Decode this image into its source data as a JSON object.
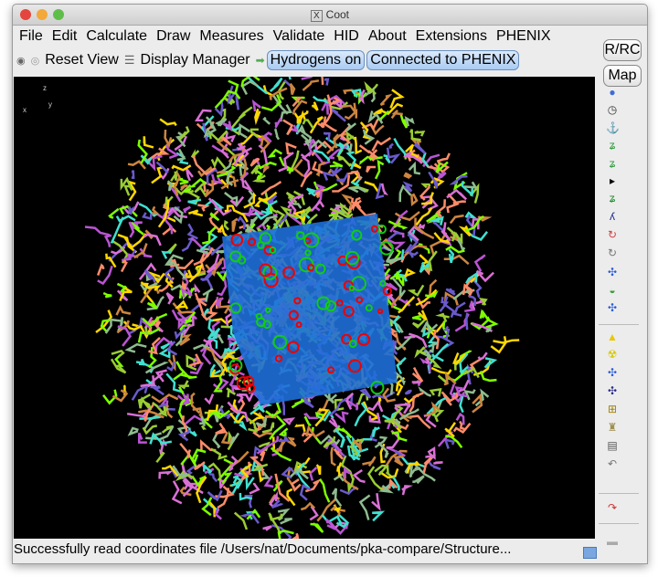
{
  "window": {
    "title": "Coot",
    "title_icon": "x11-icon"
  },
  "menu": [
    "File",
    "Edit",
    "Calculate",
    "Draw",
    "Measures",
    "Validate",
    "HID",
    "About",
    "Extensions",
    "PHENIX"
  ],
  "toolbar": {
    "reset_view": "Reset View",
    "display_manager": "Display Manager",
    "hydrogens": "Hydrogens on",
    "phenix": "Connected to PHENIX"
  },
  "side": {
    "rrc": "R/RC",
    "map": "Map",
    "icons": [
      "refine-sphere-icon",
      "regularize-icon",
      "rigid-body-fit-icon",
      "real-space-refine-zone-icon",
      "auto-fit-rotamer-icon",
      "expand-arrow-icon",
      "rotamer-icon",
      "mutate-icon",
      "auto-mutate-icon",
      "edit-chi-icon",
      "flip-peptide-icon",
      "side-chain-180-icon",
      "torsion-icon",
      "add-terminal-icon",
      "add-atom-icon",
      "add-alt-conf-icon",
      "place-atom-icon",
      "baton-icon",
      "delete-icon",
      "undo-icon",
      "redo-icon",
      "colour-bar-icon",
      "play-icon"
    ]
  },
  "axes": {
    "z": "z",
    "x": "x",
    "y": "y"
  },
  "status": "Successfully read coordinates file /Users/nat/Documents/pka-compare/Structure..."
}
